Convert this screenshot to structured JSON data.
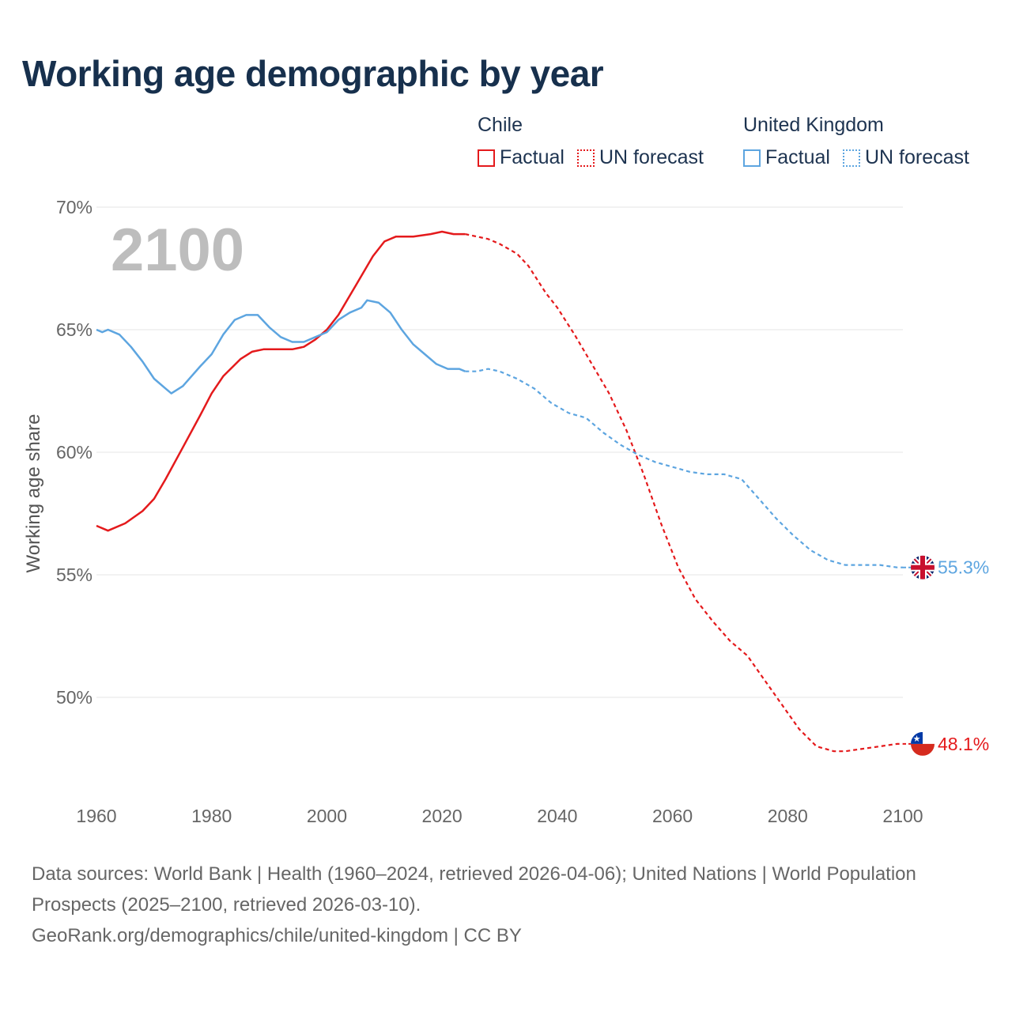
{
  "title": "Working age demographic by year",
  "legend": [
    {
      "name": "Chile",
      "color": "#e41a1c",
      "factual_label": "Factual",
      "forecast_label": "UN forecast"
    },
    {
      "name": "United Kingdom",
      "color": "#5da5e0",
      "factual_label": "Factual",
      "forecast_label": "UN forecast"
    }
  ],
  "footer": {
    "sources": "Data sources: World Bank | Health (1960–2024, retrieved 2026-04-06); United Nations | World Population Prospects (2025–2100, retrieved 2026-03-10).",
    "attribution": "GeoRank.org/demographics/chile/united-kingdom | CC BY"
  },
  "chart_data": {
    "type": "line",
    "title": "Working age demographic by year",
    "ylabel": "Working age share",
    "xlabel": "",
    "xlim": [
      1960,
      2100
    ],
    "ylim": [
      46.0,
      70.0
    ],
    "x_ticks": [
      1960,
      1980,
      2000,
      2020,
      2040,
      2060,
      2080,
      2100
    ],
    "x_tick_labels": [
      "1960",
      "1980",
      "2000",
      "2020",
      "2040",
      "2060",
      "2080",
      "2100"
    ],
    "y_ticks": [
      50,
      55,
      60,
      65,
      70
    ],
    "y_tick_labels": [
      "50%",
      "55%",
      "60%",
      "65%",
      "70%"
    ],
    "year_watermark": "2100",
    "factual_end_year": 2024,
    "series": [
      {
        "name": "Chile",
        "color": "#e41a1c",
        "flag": "chile-flag",
        "end_label": "48.1%",
        "points": [
          [
            1960,
            57.0
          ],
          [
            1962,
            56.8
          ],
          [
            1965,
            57.1
          ],
          [
            1968,
            57.6
          ],
          [
            1970,
            58.1
          ],
          [
            1972,
            58.9
          ],
          [
            1975,
            60.2
          ],
          [
            1978,
            61.5
          ],
          [
            1980,
            62.4
          ],
          [
            1982,
            63.1
          ],
          [
            1985,
            63.8
          ],
          [
            1987,
            64.1
          ],
          [
            1989,
            64.2
          ],
          [
            1992,
            64.2
          ],
          [
            1994,
            64.2
          ],
          [
            1996,
            64.3
          ],
          [
            1998,
            64.6
          ],
          [
            2000,
            65.0
          ],
          [
            2002,
            65.6
          ],
          [
            2005,
            66.8
          ],
          [
            2008,
            68.0
          ],
          [
            2010,
            68.6
          ],
          [
            2012,
            68.8
          ],
          [
            2015,
            68.8
          ],
          [
            2018,
            68.9
          ],
          [
            2020,
            69.0
          ],
          [
            2022,
            68.9
          ],
          [
            2024,
            68.9
          ],
          [
            2026,
            68.8
          ],
          [
            2028,
            68.7
          ],
          [
            2030,
            68.5
          ],
          [
            2033,
            68.1
          ],
          [
            2035,
            67.6
          ],
          [
            2038,
            66.5
          ],
          [
            2040,
            65.9
          ],
          [
            2043,
            64.8
          ],
          [
            2046,
            63.6
          ],
          [
            2049,
            62.4
          ],
          [
            2052,
            60.9
          ],
          [
            2055,
            59.1
          ],
          [
            2058,
            57.1
          ],
          [
            2061,
            55.3
          ],
          [
            2064,
            54.0
          ],
          [
            2067,
            53.1
          ],
          [
            2070,
            52.3
          ],
          [
            2073,
            51.7
          ],
          [
            2076,
            50.7
          ],
          [
            2079,
            49.7
          ],
          [
            2082,
            48.7
          ],
          [
            2085,
            48.0
          ],
          [
            2088,
            47.8
          ],
          [
            2090,
            47.8
          ],
          [
            2093,
            47.9
          ],
          [
            2096,
            48.0
          ],
          [
            2099,
            48.1
          ],
          [
            2100,
            48.1
          ]
        ]
      },
      {
        "name": "United Kingdom",
        "color": "#5da5e0",
        "flag": "united-kingdom-flag",
        "end_label": "55.3%",
        "points": [
          [
            1960,
            65.0
          ],
          [
            1961,
            64.9
          ],
          [
            1962,
            65.0
          ],
          [
            1964,
            64.8
          ],
          [
            1966,
            64.3
          ],
          [
            1968,
            63.7
          ],
          [
            1970,
            63.0
          ],
          [
            1972,
            62.6
          ],
          [
            1973,
            62.4
          ],
          [
            1975,
            62.7
          ],
          [
            1978,
            63.5
          ],
          [
            1980,
            64.0
          ],
          [
            1982,
            64.8
          ],
          [
            1984,
            65.4
          ],
          [
            1986,
            65.6
          ],
          [
            1988,
            65.6
          ],
          [
            1990,
            65.1
          ],
          [
            1992,
            64.7
          ],
          [
            1994,
            64.5
          ],
          [
            1996,
            64.5
          ],
          [
            1998,
            64.7
          ],
          [
            2000,
            64.9
          ],
          [
            2002,
            65.4
          ],
          [
            2004,
            65.7
          ],
          [
            2006,
            65.9
          ],
          [
            2007,
            66.2
          ],
          [
            2009,
            66.1
          ],
          [
            2011,
            65.7
          ],
          [
            2013,
            65.0
          ],
          [
            2015,
            64.4
          ],
          [
            2017,
            64.0
          ],
          [
            2019,
            63.6
          ],
          [
            2021,
            63.4
          ],
          [
            2023,
            63.4
          ],
          [
            2024,
            63.3
          ],
          [
            2026,
            63.3
          ],
          [
            2028,
            63.4
          ],
          [
            2030,
            63.3
          ],
          [
            2033,
            63.0
          ],
          [
            2036,
            62.6
          ],
          [
            2039,
            62.0
          ],
          [
            2042,
            61.6
          ],
          [
            2045,
            61.4
          ],
          [
            2048,
            60.8
          ],
          [
            2051,
            60.3
          ],
          [
            2054,
            59.9
          ],
          [
            2057,
            59.6
          ],
          [
            2060,
            59.4
          ],
          [
            2063,
            59.2
          ],
          [
            2066,
            59.1
          ],
          [
            2069,
            59.1
          ],
          [
            2072,
            58.9
          ],
          [
            2075,
            58.1
          ],
          [
            2078,
            57.3
          ],
          [
            2081,
            56.6
          ],
          [
            2084,
            56.0
          ],
          [
            2087,
            55.6
          ],
          [
            2090,
            55.4
          ],
          [
            2093,
            55.4
          ],
          [
            2096,
            55.4
          ],
          [
            2099,
            55.3
          ],
          [
            2100,
            55.3
          ]
        ]
      }
    ]
  }
}
